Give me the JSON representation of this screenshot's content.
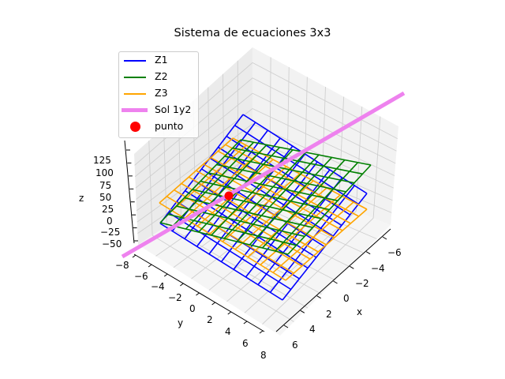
{
  "figure": {
    "title": "Sistema de ecuaciones 3x3"
  },
  "legend": {
    "items": [
      {
        "label": "Z1",
        "color": "#0000ff",
        "kind": "line"
      },
      {
        "label": "Z2",
        "color": "#008000",
        "kind": "line"
      },
      {
        "label": "Z3",
        "color": "#ffa500",
        "kind": "line"
      },
      {
        "label": "Sol 1y2",
        "color": "#ee82ee",
        "kind": "thick-line"
      },
      {
        "label": "punto",
        "color": "#ff0000",
        "kind": "marker"
      }
    ]
  },
  "axes": {
    "x": {
      "label": "x",
      "ticks": [
        "−6",
        "−4",
        "−2",
        "0",
        "2",
        "4",
        "6"
      ]
    },
    "y": {
      "label": "y",
      "ticks": [
        "−8",
        "−6",
        "−4",
        "−2",
        "0",
        "2",
        "4",
        "6",
        "8"
      ]
    },
    "z": {
      "label": "z",
      "ticks": [
        "125",
        "100",
        "75",
        "50",
        "25",
        "0",
        "−25",
        "−50"
      ]
    }
  },
  "chart_data": {
    "type": "3d-wireframe",
    "title": "Sistema de ecuaciones 3x3",
    "xlabel": "x",
    "ylabel": "y",
    "zlabel": "z",
    "xticks": [
      -6,
      -4,
      -2,
      0,
      2,
      4,
      6
    ],
    "yticks": [
      -8,
      -6,
      -4,
      -2,
      0,
      2,
      4,
      6,
      8
    ],
    "zticks": [
      -50,
      -25,
      0,
      25,
      50,
      75,
      100,
      125
    ],
    "xlim": [
      -7,
      7
    ],
    "ylim": [
      -8,
      8
    ],
    "zlim": [
      -60,
      140
    ],
    "grid": true,
    "legend_position": "upper left",
    "series": [
      {
        "name": "Z1",
        "type": "wireframe",
        "color": "blue",
        "grid_size": "10x10"
      },
      {
        "name": "Z2",
        "type": "wireframe",
        "color": "green",
        "grid_size": "10x10"
      },
      {
        "name": "Z3",
        "type": "wireframe",
        "color": "orange",
        "grid_size": "10x10"
      },
      {
        "name": "Sol 1y2",
        "type": "line",
        "color": "violet",
        "linewidth": "thick"
      },
      {
        "name": "punto",
        "type": "scatter",
        "color": "red",
        "points": 1
      }
    ]
  }
}
